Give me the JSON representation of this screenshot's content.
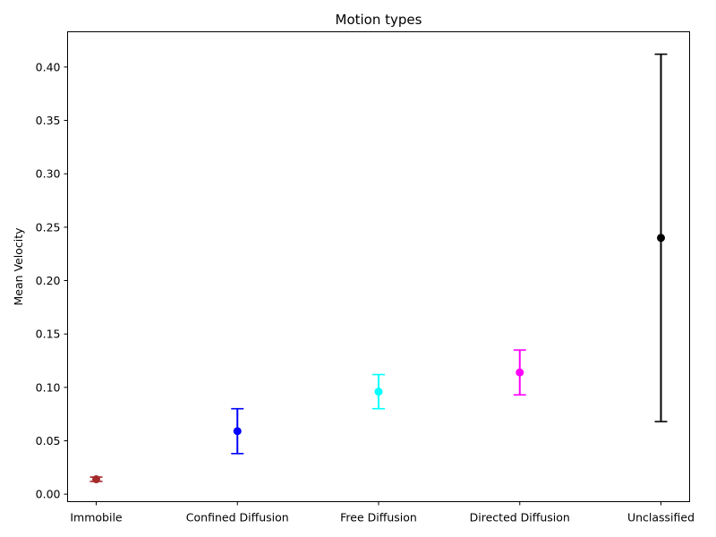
{
  "chart_data": {
    "type": "scatter",
    "title": "Motion types",
    "xlabel": "",
    "ylabel": "Mean Velocity",
    "ylim": [
      -0.007,
      0.433
    ],
    "yticks": [
      0.0,
      0.05,
      0.1,
      0.15,
      0.2,
      0.25,
      0.3,
      0.35,
      0.4
    ],
    "ytick_labels": [
      "0.00",
      "0.05",
      "0.10",
      "0.15",
      "0.20",
      "0.25",
      "0.30",
      "0.35",
      "0.40"
    ],
    "grid": false,
    "categories": [
      "Immobile",
      "Confined Diffusion",
      "Free Diffusion",
      "Directed Diffusion",
      "Unclassified"
    ],
    "points": [
      {
        "category": "Immobile",
        "value": 0.014,
        "err_low": 0.012,
        "err_high": 0.016,
        "color": "#a52a2a"
      },
      {
        "category": "Confined Diffusion",
        "value": 0.059,
        "err_low": 0.038,
        "err_high": 0.08,
        "color": "#0000ff"
      },
      {
        "category": "Free Diffusion",
        "value": 0.096,
        "err_low": 0.08,
        "err_high": 0.112,
        "color": "#00ffff"
      },
      {
        "category": "Directed Diffusion",
        "value": 0.114,
        "err_low": 0.093,
        "err_high": 0.135,
        "color": "#ff00ff"
      },
      {
        "category": "Unclassified",
        "value": 0.24,
        "err_low": 0.068,
        "err_high": 0.412,
        "color": "#000000"
      }
    ]
  }
}
